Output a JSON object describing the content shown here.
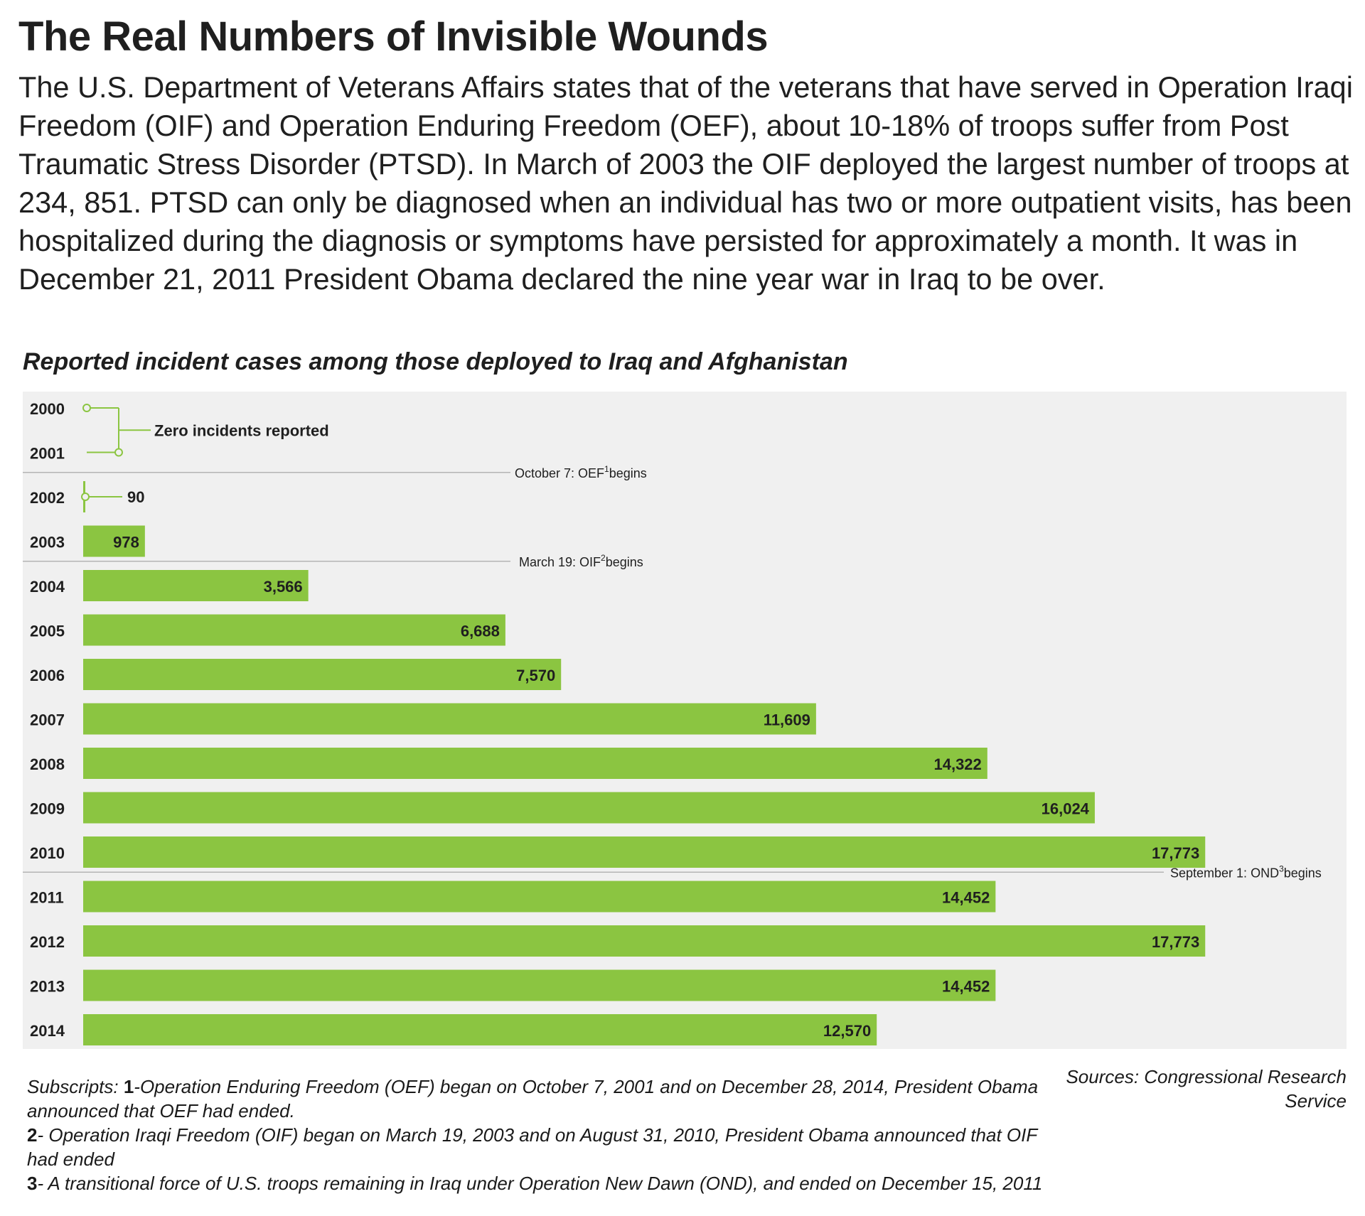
{
  "page": {
    "title": "The Real Numbers of Invisible Wounds",
    "intro": "The U.S. Department of Veterans Affairs states that of the veterans that have served in Operation Iraqi Freedom (OIF) and Operation Enduring Freedom (OEF), about 10-18% of troops suffer from Post Traumatic Stress Disorder (PTSD). In March of 2003 the OIF deployed the largest number of troops at 234, 851.  PTSD can only be diagnosed when an individual has two or more outpatient visits, has been hospitalized during the diagnosis or symptoms have persisted for approximately a month. It was in December 21, 2011 President Obama declared the nine year war in Iraq to be over.",
    "sources": "Sources:  Congressional Research Service",
    "footnotes": [
      {
        "num": "1",
        "text": "-Operation Enduring Freedom (OEF) began on October 7, 2001 and on December 28, 2014, President Obama announced that OEF had ended."
      },
      {
        "num": "2",
        "text": "- Operation Iraqi Freedom (OIF) began on March 19, 2003 and on August 31, 2010, President Obama announced that OIF had ended"
      },
      {
        "num": "3",
        "text": "- A transitional force of U.S. troops remaining in Iraq under Operation New Dawn (OND), and  ended on December 15, 2011"
      }
    ],
    "footnote_prefix": "Subscripts: "
  },
  "chart_data": {
    "type": "bar",
    "orientation": "horizontal",
    "title": "Reported incident cases among those deployed to Iraq and Afghanistan",
    "categories": [
      "2000",
      "2001",
      "2002",
      "2003",
      "2004",
      "2005",
      "2006",
      "2007",
      "2008",
      "2009",
      "2010",
      "2011",
      "2012",
      "2013",
      "2014"
    ],
    "values": [
      0,
      0,
      90,
      978,
      3566,
      6688,
      7570,
      11609,
      14322,
      16024,
      17773,
      14452,
      17773,
      14452,
      12570
    ],
    "value_labels": [
      "",
      "",
      "90",
      "978",
      "3,566",
      "6,688",
      "7,570",
      "11,609",
      "14,322",
      "16,024",
      "17,773",
      "14,452",
      "17,773",
      "14,452",
      "12,570"
    ],
    "zero_annotation": "Zero incidents reported",
    "events": [
      {
        "after_category": "2001",
        "label": "October 7: OEF",
        "sup": "1",
        "suffix": "begins"
      },
      {
        "after_category": "2003",
        "label": "March 19: OIF",
        "sup": "2",
        "suffix": "begins"
      },
      {
        "after_category": "2010",
        "label": "September 1: OND",
        "sup": "3",
        "suffix": "begins"
      }
    ],
    "bar_color": "#8bc541",
    "panel_color": "#f0f0f0",
    "grid": false,
    "legend": "none"
  }
}
